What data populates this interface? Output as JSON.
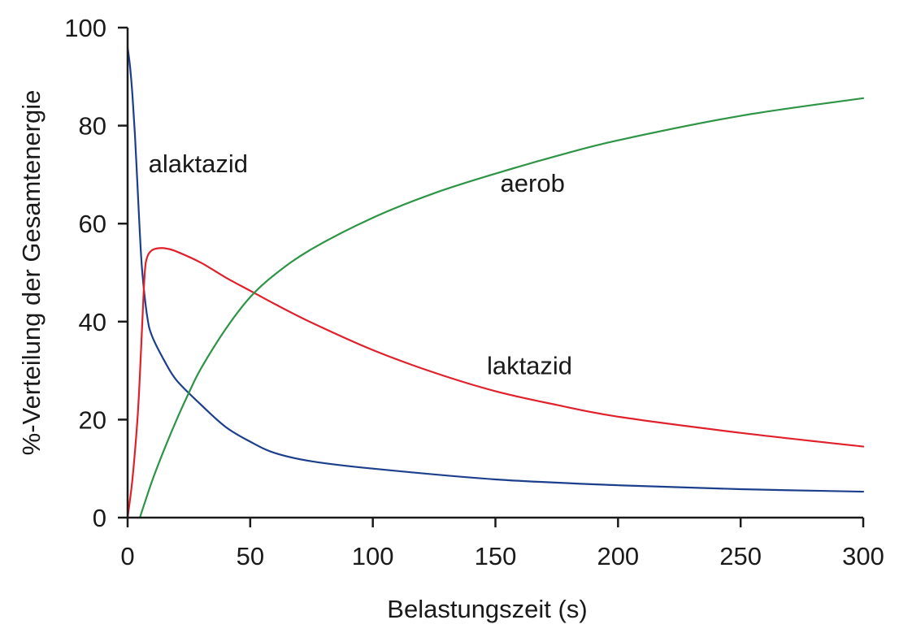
{
  "chart_data": {
    "type": "line",
    "title": "",
    "xlabel": "Belastungszeit (s)",
    "ylabel": "%-Verteilung der Gesamtenergie",
    "xlim": [
      0,
      300
    ],
    "ylim": [
      0,
      100
    ],
    "xticks": [
      0,
      50,
      100,
      150,
      200,
      250,
      300
    ],
    "yticks": [
      0,
      20,
      40,
      60,
      80,
      100
    ],
    "grid": false,
    "legend": "none",
    "series": [
      {
        "name": "alaktazid",
        "color": "#1c3f8c",
        "x": [
          0,
          1,
          2,
          3,
          4,
          5,
          6,
          8,
          10,
          15,
          20,
          30,
          40,
          50,
          60,
          75,
          100,
          150,
          200,
          250,
          300
        ],
        "y": [
          96,
          92,
          86,
          78,
          68,
          58,
          50,
          41,
          37,
          32,
          28,
          23,
          18.5,
          15.5,
          13.2,
          11.5,
          10,
          7.8,
          6.6,
          5.8,
          5.3
        ]
      },
      {
        "name": "laktazid",
        "color": "#e0202a",
        "x": [
          0,
          2,
          4,
          5,
          6,
          7,
          8,
          10,
          13,
          16,
          20,
          30,
          40,
          50,
          60,
          75,
          100,
          125,
          150,
          175,
          200,
          250,
          300
        ],
        "y": [
          0,
          8,
          20,
          29,
          40,
          50,
          53.2,
          54.6,
          55,
          54.9,
          54.3,
          52,
          49,
          46.3,
          43.6,
          39.8,
          34.2,
          29.6,
          25.8,
          23,
          20.6,
          17.3,
          14.5
        ]
      },
      {
        "name": "aerob",
        "color": "#2e9446",
        "x": [
          5,
          10,
          15,
          20,
          25,
          30,
          40,
          50,
          60,
          75,
          100,
          125,
          150,
          175,
          200,
          250,
          300
        ],
        "y": [
          0,
          7.5,
          14,
          20,
          25.5,
          30.5,
          38.5,
          45,
          49.6,
          54.8,
          61.2,
          66.2,
          70.2,
          73.8,
          77,
          82,
          85.6
        ]
      }
    ],
    "annotations": [
      {
        "text": "alaktazid",
        "x": 8.5,
        "y": 70.5
      },
      {
        "text": "aerob",
        "x": 152,
        "y": 66.5
      },
      {
        "text": "laktazid",
        "x": 146.5,
        "y": 29.3
      }
    ]
  }
}
